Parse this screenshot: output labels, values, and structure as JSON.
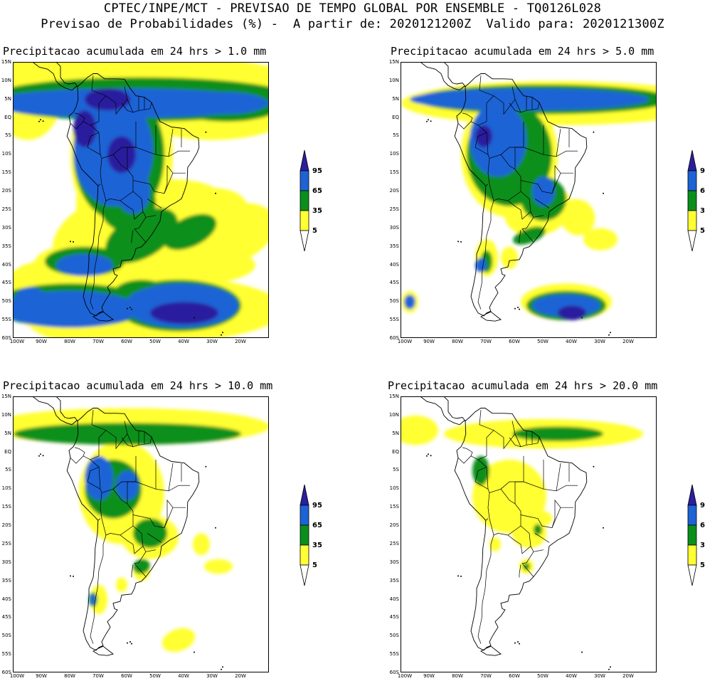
{
  "header": {
    "line1": "CPTEC/INPE/MCT - PREVISAO DE TEMPO GLOBAL POR ENSEMBLE - TQ0126L028",
    "line2": "Previsao de Probabilidades (%) -  A partir de: 2020121200Z  Valido para: 2020121300Z"
  },
  "axes": {
    "lat_labels": [
      "15N",
      "10N",
      "5N",
      "EQ",
      "5S",
      "10S",
      "15S",
      "20S",
      "25S",
      "30S",
      "35S",
      "40S",
      "45S",
      "50S",
      "55S",
      "60S"
    ],
    "lon_labels": [
      "100W",
      "90W",
      "80W",
      "70W",
      "60W",
      "50W",
      "40W",
      "30W",
      "20W"
    ]
  },
  "legend": {
    "labels": [
      "95",
      "65",
      "35",
      "5"
    ],
    "colors": [
      "#2a1f9e",
      "#1e63d6",
      "#0a8f1c",
      "#ffff33"
    ]
  },
  "panels": [
    {
      "title": "Precipitacao acumulada em 24 hrs > 1.0 mm"
    },
    {
      "title": "Precipitacao acumulada em 24 hrs > 5.0 mm"
    },
    {
      "title": "Precipitacao acumulada em 24 hrs > 10.0 mm"
    },
    {
      "title": "Precipitacao acumulada em 24 hrs > 20.0 mm"
    }
  ]
}
